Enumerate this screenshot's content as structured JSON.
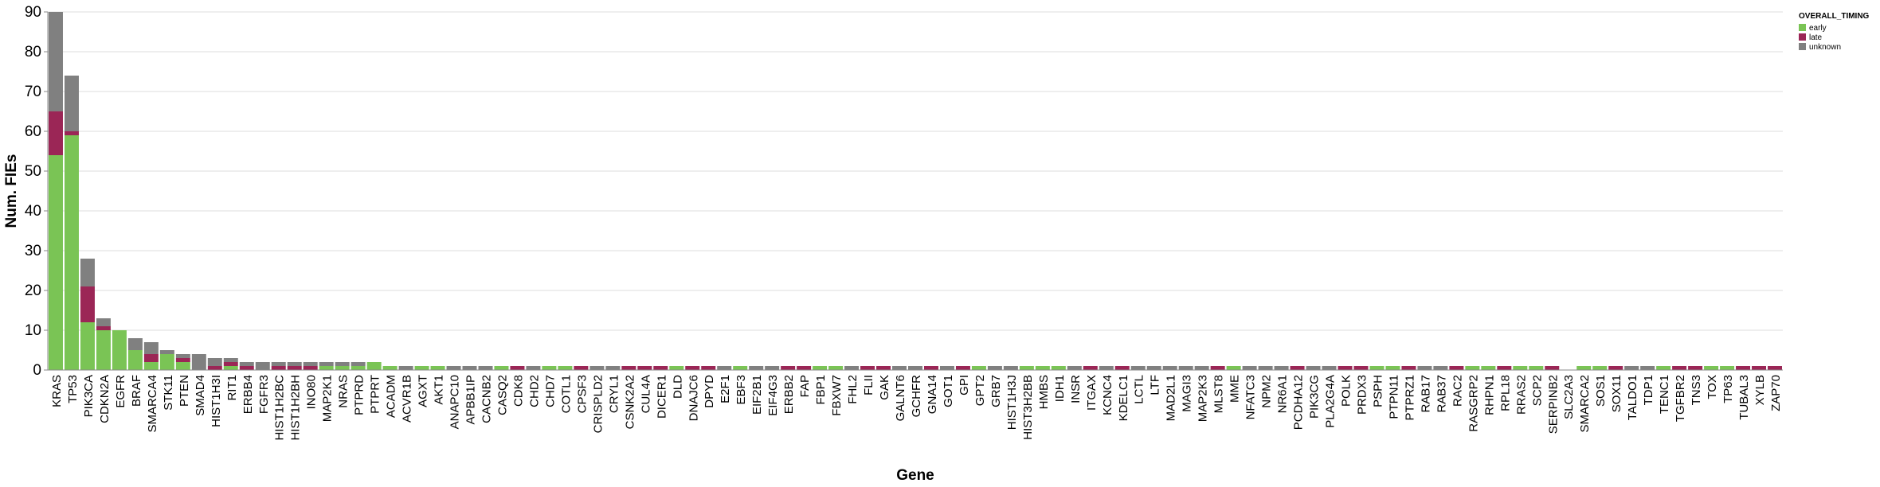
{
  "chart_data": {
    "type": "bar",
    "stacked": true,
    "title": "",
    "xlabel": "Gene",
    "ylabel": "Num. FIEs",
    "ylim": [
      0,
      90
    ],
    "yticks": [
      0,
      10,
      20,
      30,
      40,
      50,
      60,
      70,
      80,
      90
    ],
    "grid": true,
    "legend_position": "top-right",
    "legend_title": "OVERALL_TIMING",
    "categories": [
      "KRAS",
      "TP53",
      "PIK3CA",
      "CDKN2A",
      "EGFR",
      "BRAF",
      "SMARCA4",
      "STK11",
      "PTEN",
      "SMAD4",
      "HIST1H3I",
      "RIT1",
      "ERBB4",
      "FGFR3",
      "HIST1H2BC",
      "HIST1H2BH",
      "INO80",
      "MAP2K1",
      "NRAS",
      "PTPRD",
      "PTPRT",
      "ACADM",
      "ACVR1B",
      "AGXT",
      "AKT1",
      "ANAPC10",
      "APBB1IP",
      "CACNB2",
      "CASQ2",
      "CDK8",
      "CHD2",
      "CHD7",
      "COTL1",
      "CPSF3",
      "CRISPLD2",
      "CRYL1",
      "CSNK2A2",
      "CUL4A",
      "DICER1",
      "DLD",
      "DNAJC6",
      "DPYD",
      "E2F1",
      "EBF3",
      "EIF2B1",
      "EIF4G3",
      "ERBB2",
      "FAP",
      "FBP1",
      "FBXW7",
      "FHL2",
      "FLII",
      "GAK",
      "GALNT6",
      "GCHFR",
      "GNA14",
      "GOT1",
      "GPI",
      "GPT2",
      "GRB7",
      "HIST1H3J",
      "HIST3H2BB",
      "HMBS",
      "IDH1",
      "INSR",
      "ITGAX",
      "KCNC4",
      "KDELC1",
      "LCTL",
      "LTF",
      "MAD2L1",
      "MAGI3",
      "MAP2K3",
      "MLST8",
      "MME",
      "NFATC3",
      "NPM2",
      "NR6A1",
      "PCDHA12",
      "PIK3CG",
      "PLA2G4A",
      "POLK",
      "PRDX3",
      "PSPH",
      "PTPN11",
      "PTPRZ1",
      "RAB17",
      "RAB37",
      "RAC2",
      "RASGRP2",
      "RHPN1",
      "RPL18",
      "RRAS2",
      "SCP2",
      "SERPINB2",
      "SLC2A3",
      "SMARCA2",
      "SOS1",
      "SOX11",
      "TALDO1",
      "TDP1",
      "TENC1",
      "TGFBR2",
      "TNS3",
      "TOX",
      "TP63",
      "TUBAL3",
      "XYLB",
      "ZAP70"
    ],
    "series": [
      {
        "name": "early",
        "color": "#7ac455",
        "values": [
          54,
          59,
          12,
          10,
          10,
          5,
          2,
          4,
          2,
          0,
          0,
          1,
          0,
          0,
          0,
          0,
          0,
          1,
          1,
          1,
          2,
          1,
          0,
          1,
          1,
          0,
          0,
          0,
          1,
          0,
          0,
          1,
          1,
          0,
          0,
          0,
          0,
          0,
          0,
          1,
          0,
          0,
          0,
          1,
          0,
          0,
          0,
          0,
          1,
          1,
          0,
          0,
          0,
          0,
          0,
          0,
          0,
          0,
          1,
          0,
          0,
          1,
          1,
          1,
          0,
          0,
          0,
          0,
          0,
          0,
          0,
          0,
          0,
          0,
          1,
          0,
          0,
          0,
          0,
          0,
          0,
          0,
          0,
          1,
          1,
          0,
          0,
          0,
          0,
          1,
          1,
          0,
          1,
          1,
          0,
          0,
          1,
          1,
          0,
          0,
          0,
          1,
          0,
          0,
          1,
          1,
          0,
          0,
          0
        ]
      },
      {
        "name": "late",
        "color": "#9b2656",
        "values": [
          11,
          1,
          9,
          1,
          0,
          0,
          2,
          0,
          1,
          0,
          1,
          1,
          1,
          0,
          1,
          1,
          1,
          0,
          0,
          0,
          0,
          0,
          0,
          0,
          0,
          0,
          0,
          0,
          0,
          1,
          0,
          0,
          0,
          1,
          0,
          0,
          1,
          1,
          1,
          0,
          1,
          1,
          0,
          0,
          0,
          0,
          1,
          1,
          0,
          0,
          0,
          1,
          1,
          0,
          0,
          1,
          0,
          1,
          0,
          0,
          0,
          0,
          0,
          0,
          0,
          1,
          0,
          1,
          0,
          0,
          0,
          0,
          0,
          1,
          0,
          0,
          0,
          0,
          1,
          0,
          0,
          1,
          1,
          0,
          0,
          1,
          0,
          0,
          1,
          0,
          0,
          1,
          0,
          0,
          1,
          0,
          0,
          0,
          1,
          0,
          0,
          0,
          1,
          1,
          0,
          0,
          1,
          1,
          1
        ]
      },
      {
        "name": "unknown",
        "color": "#808080",
        "values": [
          25,
          14,
          7,
          2,
          0,
          3,
          3,
          1,
          1,
          4,
          2,
          1,
          1,
          2,
          1,
          1,
          1,
          1,
          1,
          1,
          0,
          0,
          1,
          0,
          0,
          1,
          1,
          1,
          0,
          0,
          1,
          0,
          0,
          0,
          1,
          1,
          0,
          0,
          0,
          0,
          0,
          0,
          1,
          0,
          1,
          1,
          0,
          0,
          0,
          0,
          1,
          0,
          0,
          1,
          1,
          0,
          1,
          0,
          0,
          1,
          1,
          0,
          0,
          0,
          1,
          0,
          1,
          0,
          1,
          1,
          1,
          1,
          1,
          0,
          0,
          1,
          1,
          1,
          0,
          1,
          1,
          0,
          0,
          0,
          0,
          0,
          1,
          1,
          0,
          0,
          0,
          0,
          0,
          0,
          0,
          0,
          0,
          0,
          0,
          1,
          1,
          0,
          0,
          0,
          0,
          0,
          0,
          0,
          0
        ]
      }
    ]
  }
}
